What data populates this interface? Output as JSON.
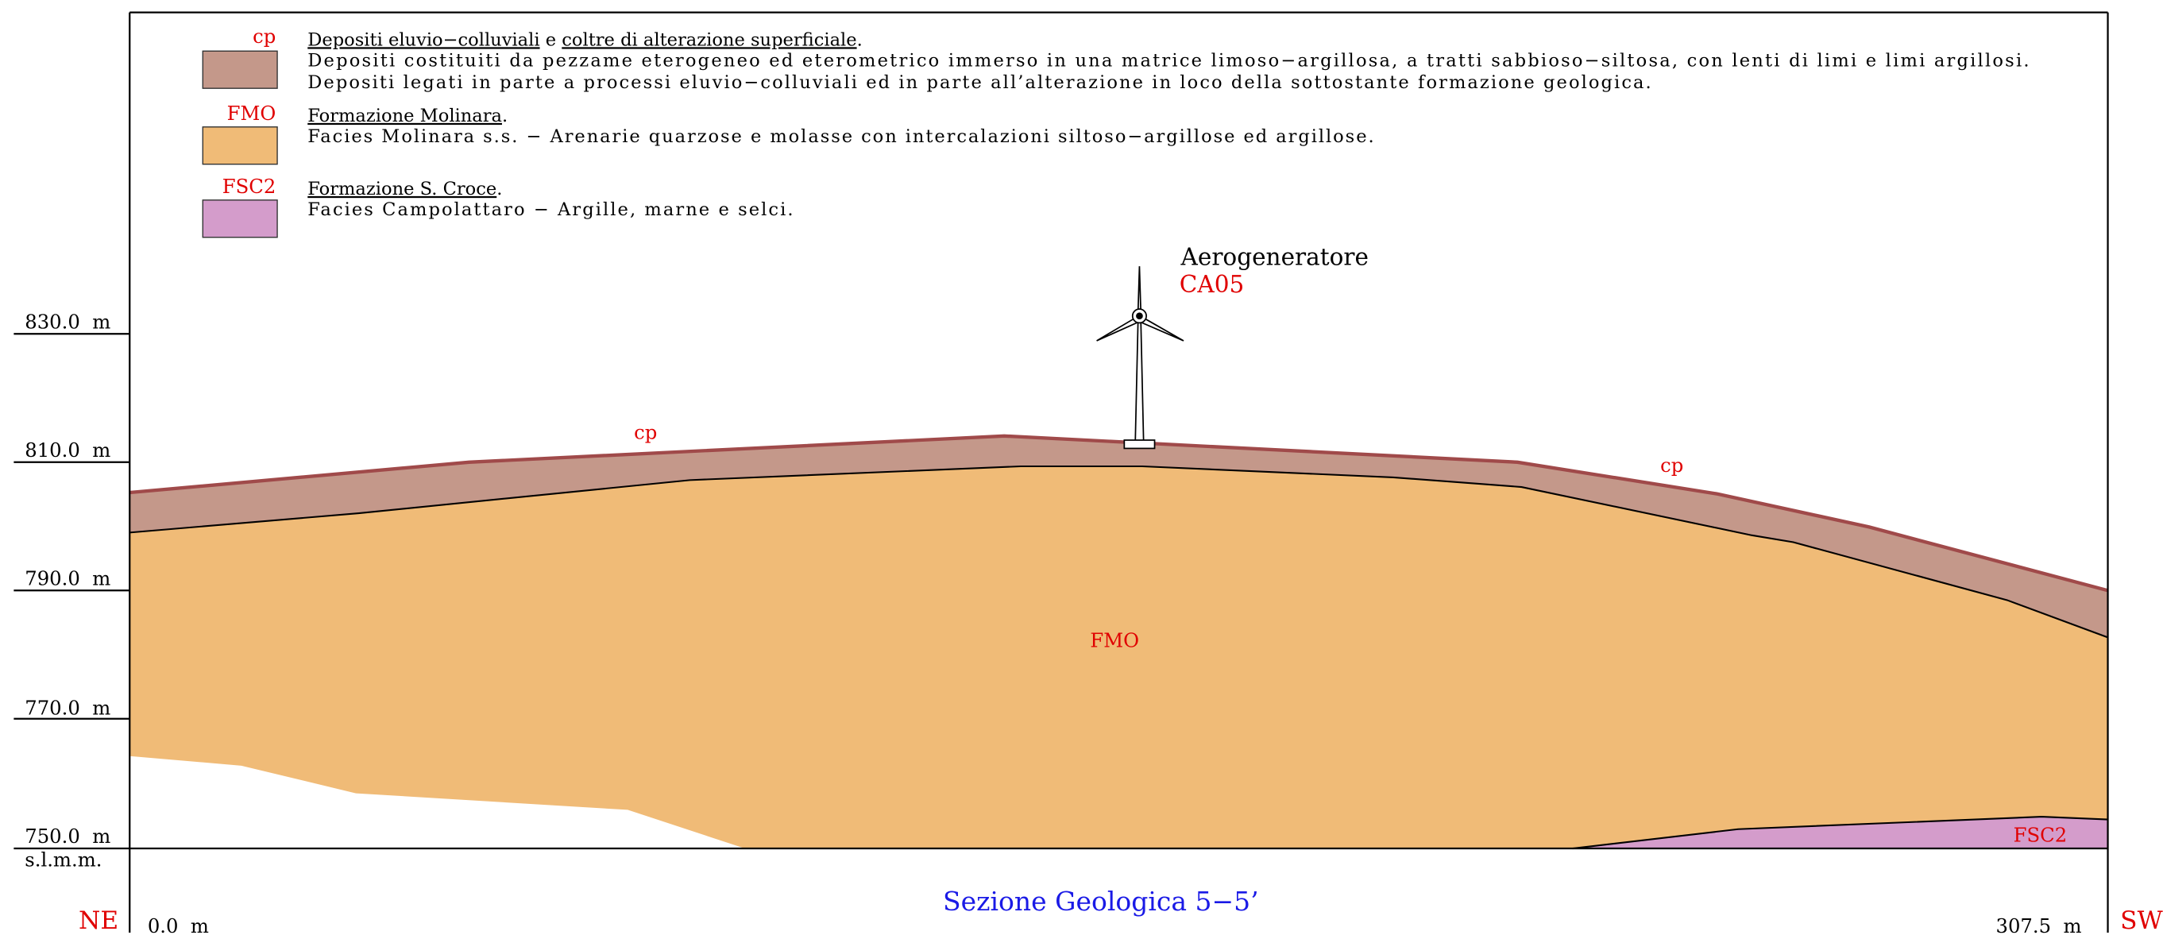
{
  "legend": [
    {
      "code": "cp",
      "title": [
        "Depositi eluvio−colluviali",
        " e ",
        "coltre di alterazione superficiale",
        "."
      ],
      "lines": [
        "Depositi costituiti da pezzame eterogeneo ed eterometrico immerso in una matrice limoso−argillosa, a tratti sabbioso−siltosa, con lenti di limi e limi argillosi.",
        "Depositi legati in parte a processi eluvio−colluviali ed in parte all’alterazione in loco della sottostante formazione geologica."
      ]
    },
    {
      "code": "FMO",
      "title": [
        "Formazione Molinara",
        "."
      ],
      "lines": [
        "Facies Molinara s.s. − Arenarie quarzose e molasse con intercalazioni siltoso−argillose ed argillose."
      ]
    },
    {
      "code": "FSC2",
      "title": [
        "Formazione S. Croce",
        "."
      ],
      "lines": [
        "Facies Campolattaro − Argille, marne e selci."
      ]
    }
  ],
  "elevations": [
    "830.0  m",
    "810.0  m",
    "790.0  m",
    "770.0  m",
    "750.0  m"
  ],
  "datum": "s.l.m.m.",
  "turbine": {
    "label": "Aerogeneratore",
    "id": "CA05"
  },
  "units": {
    "cp_left": "cp",
    "cp_right": "cp",
    "fmo": "FMO",
    "fsc2": "FSC2"
  },
  "ends": {
    "left": "NE",
    "right": "SW"
  },
  "distances": {
    "start": "0.0  m",
    "end": "307.5  m"
  },
  "title": "Sezione Geologica 5−5’"
}
